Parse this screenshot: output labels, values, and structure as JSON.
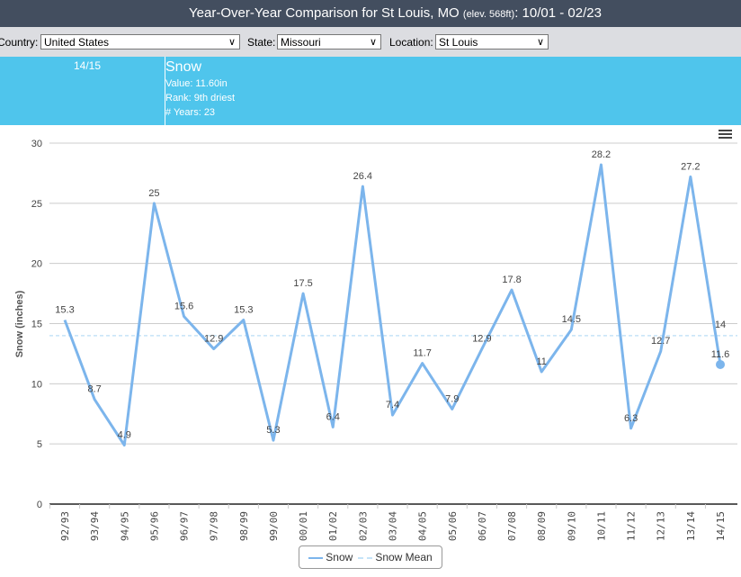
{
  "header": {
    "title": "Year-Over-Year Comparison for St Louis, MO",
    "elev": "(elev. 568ft)",
    "range": ": 10/01 - 02/23"
  },
  "controls": {
    "country_label": "Country:",
    "country": "United States",
    "state_label": "State:",
    "state": "Missouri",
    "location_label": "Location:",
    "location": "St Louis"
  },
  "info": {
    "year": "14/15",
    "title": "Snow",
    "value": "Value: 11.60in",
    "rank": "Rank: 9th driest",
    "years": "# Years: 23"
  },
  "chart_data": {
    "type": "line",
    "ylabel": "Snow (inches)",
    "ylim": [
      0,
      30
    ],
    "yticks": [
      0,
      5,
      10,
      15,
      20,
      25,
      30
    ],
    "grid": true,
    "legend_placement": "bottom",
    "categories": [
      "92/93",
      "93/94",
      "94/95",
      "95/96",
      "96/97",
      "97/98",
      "98/99",
      "99/00",
      "00/01",
      "01/02",
      "02/03",
      "03/04",
      "04/05",
      "05/06",
      "06/07",
      "07/08",
      "08/09",
      "09/10",
      "10/11",
      "11/12",
      "12/13",
      "13/14",
      "14/15"
    ],
    "series": [
      {
        "name": "Snow",
        "color": "#7cb5ec",
        "values": [
          15.3,
          8.7,
          4.9,
          25,
          15.6,
          12.9,
          15.3,
          5.3,
          17.5,
          6.4,
          26.4,
          7.4,
          11.7,
          7.9,
          12.9,
          17.8,
          11,
          14.5,
          28.2,
          6.3,
          12.7,
          27.2,
          11.6
        ]
      },
      {
        "name": "Snow Mean",
        "color": "#c5e3f8",
        "value": 14
      }
    ],
    "highlighted": "14/15"
  },
  "icons": {
    "menu": "hamburger-menu-icon",
    "chevron": "chevron-down-icon"
  }
}
